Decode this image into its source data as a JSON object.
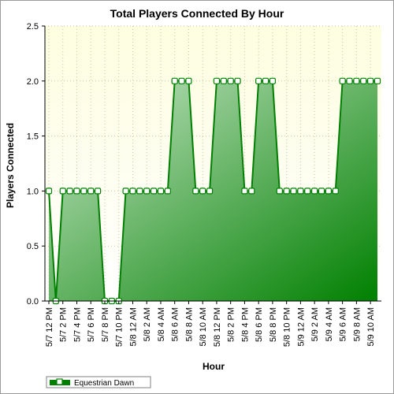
{
  "chart_data": {
    "type": "area",
    "title": "Total Players Connected By Hour",
    "xlabel": "Hour",
    "ylabel": "Players Connected",
    "ylim": [
      0,
      2.5
    ],
    "yticks": [
      "0.0",
      "0.5",
      "1.0",
      "1.5",
      "2.0",
      "2.5"
    ],
    "grid": true,
    "legend_position": "bottom-left",
    "x_tick_labels": [
      "5/7 12 PM",
      "5/7 2 PM",
      "5/7 4 PM",
      "5/7 6 PM",
      "5/7 8 PM",
      "5/7 10 PM",
      "5/8 12 AM",
      "5/8 2 AM",
      "5/8 4 AM",
      "5/8 6 AM",
      "5/8 8 AM",
      "5/8 10 AM",
      "5/8 12 PM",
      "5/8 2 PM",
      "5/8 4 PM",
      "5/8 6 PM",
      "5/8 8 PM",
      "5/8 10 PM",
      "5/9 12 AM",
      "5/9 2 AM",
      "5/9 4 AM",
      "5/9 6 AM",
      "5/9 8 AM",
      "5/9 10 AM"
    ],
    "series": [
      {
        "name": "Equestrian Dawn",
        "color": "#008000",
        "values": [
          1,
          0,
          1,
          1,
          1,
          1,
          1,
          1,
          0,
          0,
          0,
          1,
          1,
          1,
          1,
          1,
          1,
          1,
          2,
          2,
          2,
          1,
          1,
          1,
          2,
          2,
          2,
          2,
          1,
          1,
          2,
          2,
          2,
          1,
          1,
          1,
          1,
          1,
          1,
          1,
          1,
          1,
          2,
          2,
          2,
          2,
          2,
          2
        ]
      }
    ]
  },
  "colors": {
    "plot_bg_top": "#fefee0",
    "plot_bg_bottom": "#ffffff",
    "fill_light": "#c8e6c8",
    "fill_dark": "#008000",
    "line": "#008000",
    "grid": "#c8c8a0"
  }
}
